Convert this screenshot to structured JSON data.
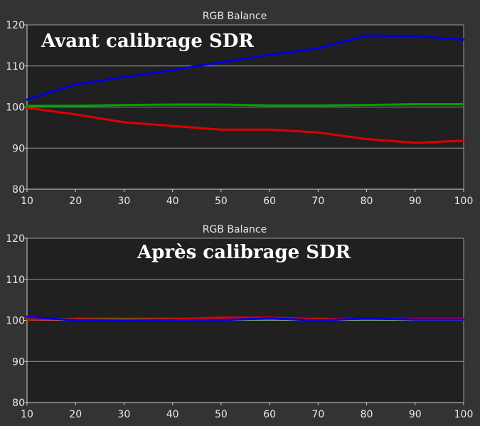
{
  "chart_data": [
    {
      "type": "line",
      "title": "RGB Balance",
      "overlay_text": "Avant calibrage SDR",
      "xlabel": "",
      "ylabel": "",
      "x": [
        10,
        20,
        30,
        40,
        50,
        60,
        70,
        80,
        90,
        100
      ],
      "xlim": [
        10,
        100
      ],
      "ylim": [
        80,
        120
      ],
      "x_ticks": [
        10,
        20,
        30,
        40,
        50,
        60,
        70,
        80,
        90,
        100
      ],
      "y_ticks": [
        80,
        90,
        100,
        110,
        120
      ],
      "grid": true,
      "series": [
        {
          "color": "#0000e0",
          "values": [
            101.8,
            105.5,
            107.3,
            109.0,
            110.9,
            112.7,
            114.3,
            117.4,
            117.3,
            116.4
          ]
        },
        {
          "color": "#00a000",
          "values": [
            100.3,
            100.3,
            100.5,
            100.6,
            100.6,
            100.4,
            100.4,
            100.5,
            100.7,
            100.7
          ]
        },
        {
          "color": "#e00000",
          "values": [
            99.8,
            98.2,
            96.3,
            95.4,
            94.5,
            94.5,
            93.8,
            92.2,
            91.3,
            91.8
          ]
        }
      ]
    },
    {
      "type": "line",
      "title": "RGB Balance",
      "overlay_text": "Après calibrage SDR",
      "xlabel": "",
      "ylabel": "",
      "x": [
        10,
        20,
        30,
        40,
        50,
        60,
        70,
        80,
        90,
        100
      ],
      "xlim": [
        10,
        100
      ],
      "ylim": [
        80,
        120
      ],
      "x_ticks": [
        10,
        20,
        30,
        40,
        50,
        60,
        70,
        80,
        90,
        100
      ],
      "y_ticks": [
        80,
        90,
        100,
        110,
        120
      ],
      "grid": true,
      "series": [
        {
          "color": "#00a000",
          "values": [
            100.2,
            100.4,
            100.4,
            100.4,
            100.3,
            100.3,
            100.4,
            100.3,
            100.3,
            100.3
          ]
        },
        {
          "color": "#e00000",
          "values": [
            100.2,
            100.3,
            100.2,
            100.3,
            100.7,
            100.7,
            100.3,
            100.4,
            100.4,
            100.4
          ]
        },
        {
          "color": "#0000e0",
          "values": [
            100.9,
            100.0,
            99.9,
            100.0,
            100.1,
            100.5,
            100.0,
            100.5,
            100.2,
            100.2
          ]
        }
      ]
    }
  ]
}
